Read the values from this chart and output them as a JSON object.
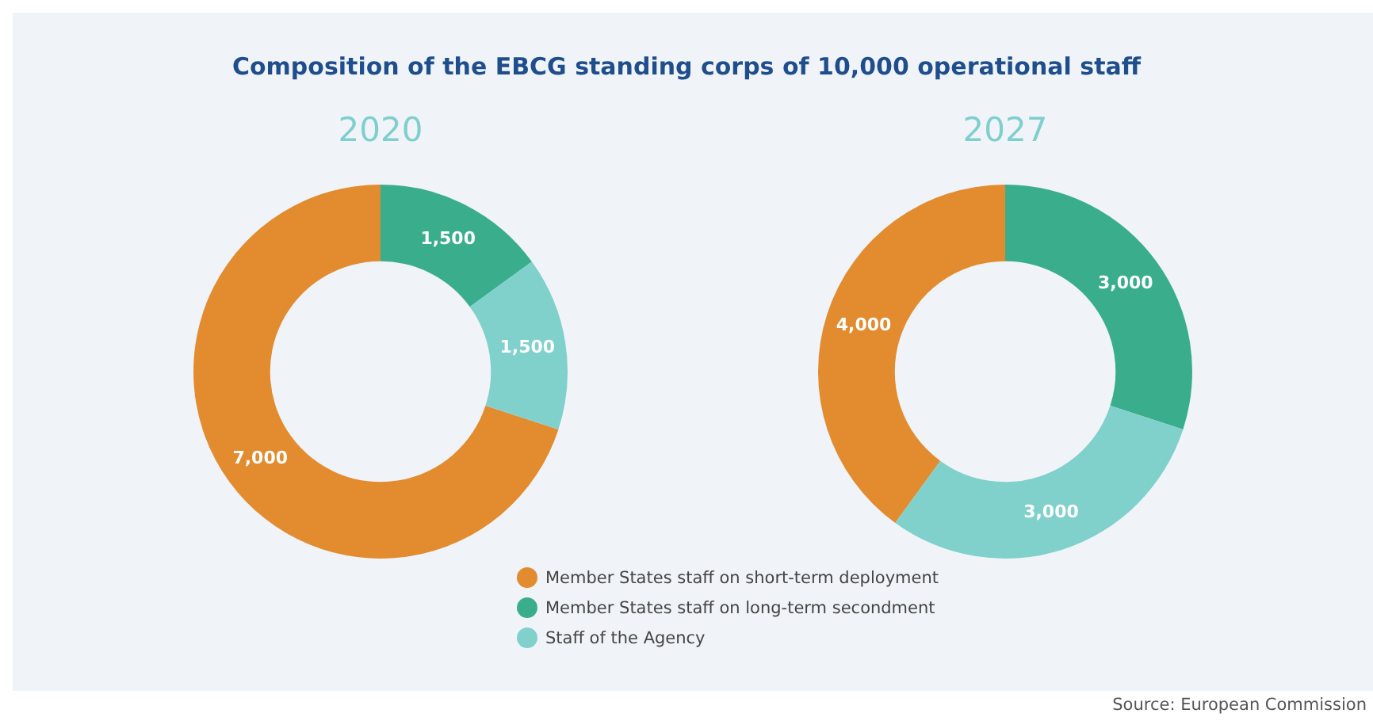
{
  "chart_data": [
    {
      "type": "donut",
      "title": "Composition of the EBCG standing corps of 10,000 operational staff",
      "subtitle": "2020",
      "categories": [
        "Member States staff on short-term deployment",
        "Member States staff on long-term secondment",
        "Staff of the Agency"
      ],
      "values": [
        7000,
        1500,
        1500
      ],
      "value_labels": [
        "7,000",
        "1,500",
        "1,500"
      ],
      "colors": [
        "#e38b2f",
        "#3aae8c",
        "#80d0cc"
      ],
      "legend": "bottom"
    },
    {
      "type": "donut",
      "subtitle": "2027",
      "categories": [
        null,
        null,
        null
      ],
      "values": [
        4000,
        3000,
        3000
      ],
      "value_labels": [
        "4,000",
        "3,000",
        "3,000"
      ],
      "colors": [
        "#e38b2f",
        "#3aae8c",
        "#80d0cc"
      ],
      "annotations": [
        "Source: European Commission"
      ]
    }
  ]
}
